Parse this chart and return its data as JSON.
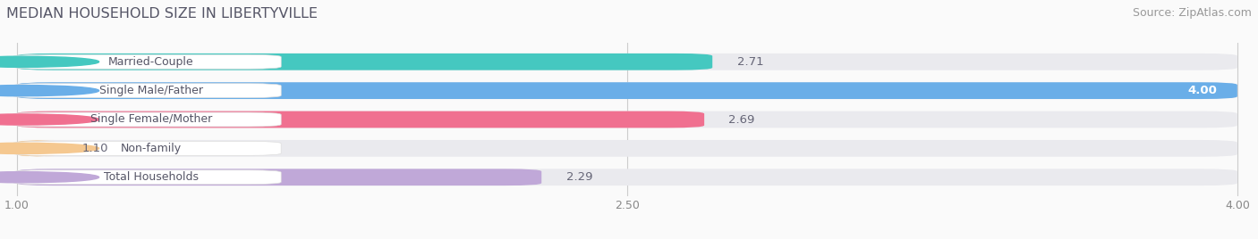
{
  "title": "MEDIAN HOUSEHOLD SIZE IN LIBERTYVILLE",
  "source": "Source: ZipAtlas.com",
  "categories": [
    "Married-Couple",
    "Single Male/Father",
    "Single Female/Mother",
    "Non-family",
    "Total Households"
  ],
  "values": [
    2.71,
    4.0,
    2.69,
    1.1,
    2.29
  ],
  "bar_colors": [
    "#45C8C0",
    "#6AAEE8",
    "#F07090",
    "#F5C890",
    "#C0A8D8"
  ],
  "label_pill_colors": [
    "#45C8C0",
    "#6AAEE8",
    "#F07090",
    "#F5C890",
    "#C0A8D8"
  ],
  "bar_bg_color": "#EAEAEE",
  "x_ticks": [
    1.0,
    2.5,
    4.0
  ],
  "x_min": 1.0,
  "x_max": 4.0,
  "fig_bg_color": "#FAFAFA",
  "label_text_color": "#555566",
  "tick_color": "#888888",
  "value_color_dark": "#666677",
  "value_color_light": "#FFFFFF",
  "grid_color": "#CCCCCC",
  "value_label_fontsize": 9.5,
  "category_label_fontsize": 9.0,
  "title_fontsize": 11.5,
  "source_fontsize": 9.0,
  "title_color": "#555566",
  "source_color": "#999999"
}
